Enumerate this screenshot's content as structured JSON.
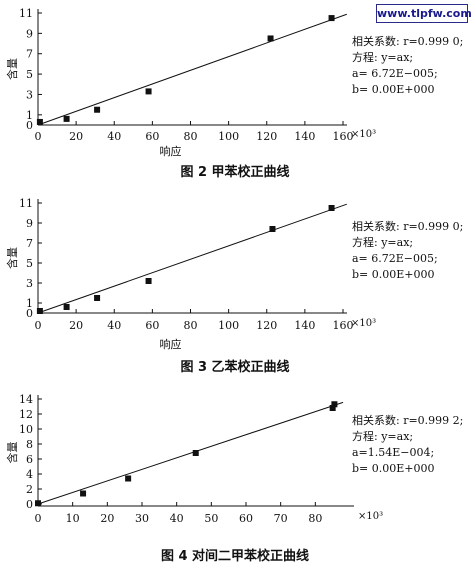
{
  "watermark": "www.tlpfw.com",
  "chart_data": [
    {
      "type": "scatter",
      "caption": "图 2   甲苯校正曲线",
      "xlabel": "响应",
      "ylabel": "含量",
      "x_multiplier": "×10³",
      "xlim": [
        0,
        160
      ],
      "ylim": [
        0,
        11
      ],
      "xticks": [
        0,
        20,
        40,
        60,
        80,
        100,
        120,
        140,
        160
      ],
      "yticks": [
        0,
        1,
        3,
        5,
        7,
        9,
        11
      ],
      "points": [
        {
          "x": 1,
          "y": 0.3
        },
        {
          "x": 15,
          "y": 0.6
        },
        {
          "x": 31,
          "y": 1.5
        },
        {
          "x": 58,
          "y": 3.3
        },
        {
          "x": 122,
          "y": 8.5
        },
        {
          "x": 154,
          "y": 10.5
        }
      ],
      "fit_line": {
        "x": [
          0,
          162
        ],
        "y": [
          0,
          10.88
        ]
      },
      "annotation": [
        "相关系数: r=0.999 0;",
        "方程: y=ax;",
        "a= 6.72E−005;",
        "b= 0.00E+000"
      ]
    },
    {
      "type": "scatter",
      "caption": "图 3   乙苯校正曲线",
      "xlabel": "响应",
      "ylabel": "含量",
      "x_multiplier": "×10³",
      "xlim": [
        0,
        160
      ],
      "ylim": [
        0,
        11
      ],
      "xticks": [
        0,
        20,
        40,
        60,
        80,
        100,
        120,
        140,
        160
      ],
      "yticks": [
        0,
        1,
        3,
        5,
        7,
        9,
        11
      ],
      "points": [
        {
          "x": 1,
          "y": 0.2
        },
        {
          "x": 15,
          "y": 0.6
        },
        {
          "x": 31,
          "y": 1.5
        },
        {
          "x": 58,
          "y": 3.2
        },
        {
          "x": 123,
          "y": 8.4
        },
        {
          "x": 154,
          "y": 10.5
        }
      ],
      "fit_line": {
        "x": [
          0,
          162
        ],
        "y": [
          0,
          10.88
        ]
      },
      "annotation": [
        "相关系数: r=0.999 0;",
        "方程: y=ax;",
        "a= 6.72E−005;",
        "b= 0.00E+000"
      ]
    },
    {
      "type": "scatter",
      "caption": "图 4   对间二甲苯校正曲线",
      "xlabel": "响应",
      "ylabel": "含量",
      "x_multiplier": "×10³",
      "xlim": [
        0,
        90
      ],
      "ylim": [
        0,
        14
      ],
      "xticks": [
        0,
        10,
        20,
        30,
        40,
        50,
        60,
        70,
        80
      ],
      "yticks": [
        0,
        2,
        4,
        6,
        8,
        10,
        12,
        14
      ],
      "points": [
        {
          "x": 0,
          "y": 0.1
        },
        {
          "x": 13,
          "y": 1.4
        },
        {
          "x": 26,
          "y": 3.4
        },
        {
          "x": 45.5,
          "y": 6.8
        },
        {
          "x": 85,
          "y": 12.8
        },
        {
          "x": 85.5,
          "y": 13.3
        }
      ],
      "fit_line": {
        "x": [
          0,
          88
        ],
        "y": [
          0,
          13.55
        ]
      },
      "annotation": [
        "相关系数: r=0.999 2;",
        "方程: y=ax;",
        "a=1.54E−004;",
        "b= 0.00E+000"
      ]
    }
  ]
}
